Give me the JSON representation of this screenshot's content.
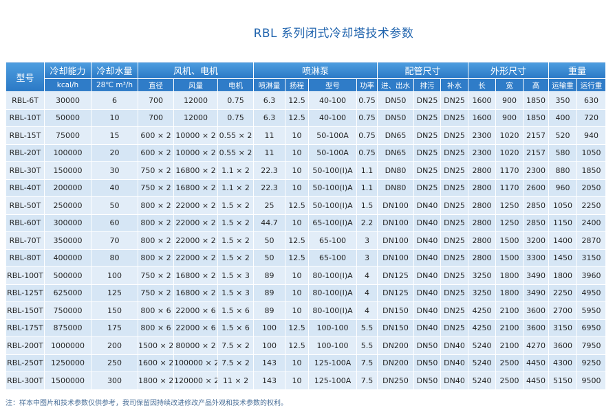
{
  "title": "RBL 系列闭式冷却塔技术参数",
  "table": {
    "header_top": [
      "型号",
      "冷却能力",
      "冷却水量",
      "风机、电机",
      "喷淋泵",
      "配管尺寸",
      "外形尺寸",
      "重量"
    ],
    "header_sub": [
      "kcal/h",
      "28℃ m³/h",
      "直径",
      "风量",
      "电机",
      "喷淋量",
      "扬程",
      "型号",
      "功率",
      "进、出水",
      "排污",
      "补水",
      "长",
      "宽",
      "高",
      "运输重",
      "运行重"
    ],
    "rows": [
      [
        "RBL-6T",
        "30000",
        "6",
        "700",
        "12000",
        "0.75",
        "6.3",
        "12.5",
        "40-100",
        "0.75",
        "DN50",
        "DN25",
        "DN25",
        "1600",
        "900",
        "1850",
        "350",
        "630"
      ],
      [
        "RBL-10T",
        "50000",
        "10",
        "700",
        "12000",
        "0.75",
        "6.3",
        "12.5",
        "40-100",
        "0.75",
        "DN50",
        "DN25",
        "DN25",
        "1600",
        "900",
        "1850",
        "400",
        "720"
      ],
      [
        "RBL-15T",
        "75000",
        "15",
        "600 × 2",
        "10000 × 2",
        "0.55 × 2",
        "11",
        "10",
        "50-100A",
        "0.75",
        "DN65",
        "DN25",
        "DN25",
        "2300",
        "1020",
        "2157",
        "520",
        "940"
      ],
      [
        "RBL-20T",
        "100000",
        "20",
        "600 × 2",
        "10000 × 2",
        "0.55 × 2",
        "11",
        "10",
        "50-100A",
        "0.75",
        "DN65",
        "DN25",
        "DN25",
        "2300",
        "1020",
        "2157",
        "580",
        "1050"
      ],
      [
        "RBL-30T",
        "150000",
        "30",
        "750 × 2",
        "16800 × 2",
        "1.1 × 2",
        "22.3",
        "10",
        "50-100(I)A",
        "1.1",
        "DN80",
        "DN25",
        "DN25",
        "2800",
        "1170",
        "2300",
        "880",
        "1850"
      ],
      [
        "RBL-40T",
        "200000",
        "40",
        "750 × 2",
        "16800 × 2",
        "1.1 × 2",
        "22.3",
        "10",
        "50-100(I)A",
        "1.1",
        "DN80",
        "DN25",
        "DN25",
        "2800",
        "1170",
        "2600",
        "960",
        "2050"
      ],
      [
        "RBL-50T",
        "250000",
        "50",
        "800 × 2",
        "22000 × 2",
        "1.5 × 2",
        "25",
        "12.5",
        "50-100(I)A",
        "1.5",
        "DN100",
        "DN40",
        "DN25",
        "2800",
        "1250",
        "2850",
        "1050",
        "2250"
      ],
      [
        "RBL-60T",
        "300000",
        "60",
        "800 × 2",
        "22000 × 2",
        "1.5 × 2",
        "44.7",
        "10",
        "65-100(I)A",
        "2.2",
        "DN100",
        "DN40",
        "DN25",
        "2800",
        "1250",
        "2850",
        "1150",
        "2400"
      ],
      [
        "RBL-70T",
        "350000",
        "70",
        "800 × 2",
        "22000 × 2",
        "1.5 × 2",
        "50",
        "12.5",
        "65-100",
        "3",
        "DN100",
        "DN40",
        "DN25",
        "2800",
        "1500",
        "3200",
        "1400",
        "2870"
      ],
      [
        "RBL-80T",
        "400000",
        "80",
        "800 × 2",
        "22000 × 2",
        "1.5 × 2",
        "50",
        "12.5",
        "65-100",
        "3",
        "DN100",
        "DN40",
        "DN25",
        "2800",
        "1500",
        "3300",
        "1450",
        "3150"
      ],
      [
        "RBL-100T",
        "500000",
        "100",
        "750 × 2",
        "16800 × 2",
        "1.5 × 3",
        "89",
        "10",
        "80-100(I)A",
        "4",
        "DN125",
        "DN40",
        "DN25",
        "3250",
        "1800",
        "3490",
        "1800",
        "3960"
      ],
      [
        "RBL-125T",
        "625000",
        "125",
        "750 × 2",
        "16800 × 2",
        "1.5 × 3",
        "89",
        "10",
        "80-100(I)A",
        "4",
        "DN125",
        "DN40",
        "DN25",
        "3250",
        "1800",
        "3490",
        "2250",
        "4950"
      ],
      [
        "RBL-150T",
        "750000",
        "150",
        "800 × 6",
        "22000 × 6",
        "1.5 × 6",
        "89",
        "10",
        "80-100(I)A",
        "4",
        "DN150",
        "DN40",
        "DN25",
        "4250",
        "2100",
        "3600",
        "2700",
        "5950"
      ],
      [
        "RBL-175T",
        "875000",
        "175",
        "800 × 6",
        "22000 × 6",
        "1.5 × 6",
        "100",
        "12.5",
        "100-100",
        "5.5",
        "DN150",
        "DN40",
        "DN25",
        "4250",
        "2100",
        "3600",
        "3150",
        "6950"
      ],
      [
        "RBL-200T",
        "1000000",
        "200",
        "1500 × 2",
        "80000 × 2",
        "7.5 × 2",
        "100",
        "12.5",
        "100-100",
        "5.5",
        "DN200",
        "DN50",
        "DN40",
        "5240",
        "2100",
        "4270",
        "3600",
        "7950"
      ],
      [
        "RBL-250T",
        "1250000",
        "250",
        "1600 × 2",
        "100000 × 2",
        "7.5 × 2",
        "143",
        "10",
        "125-100A",
        "7.5",
        "DN200",
        "DN50",
        "DN40",
        "5240",
        "2500",
        "4450",
        "4300",
        "9250"
      ],
      [
        "RBL-300T",
        "1500000",
        "300",
        "1800 × 2",
        "120000 × 2",
        "11 × 2",
        "143",
        "10",
        "125-100A",
        "7.5",
        "DN250",
        "DN50",
        "DN40",
        "5240",
        "2500",
        "4450",
        "5150",
        "9500"
      ]
    ]
  },
  "note": "注：样本中图片和技术参数仅供参考，我司保留因持续改进修改产品外观和技术参数的权利。"
}
